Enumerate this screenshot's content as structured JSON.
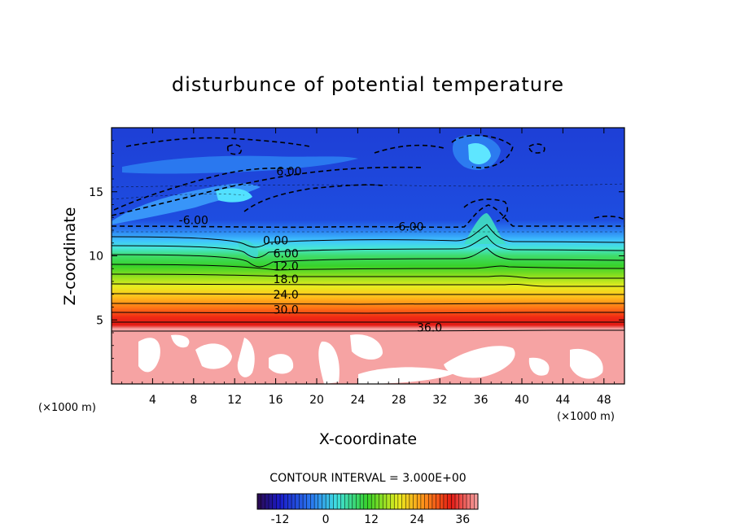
{
  "chart_data": {
    "type": "heatmap",
    "title": "disturbunce of potential temperature",
    "xlabel": "X-coordinate",
    "ylabel": "Z-coordinate",
    "x_unit_left": "(×1000 m)",
    "x_unit_right": "(×1000 m)",
    "xlim": [
      0,
      50
    ],
    "ylim": [
      0,
      20
    ],
    "x_ticks": [
      "4",
      "8",
      "12",
      "16",
      "20",
      "24",
      "28",
      "32",
      "36",
      "40",
      "44",
      "48"
    ],
    "y_ticks": [
      "5",
      "10",
      "15"
    ],
    "contour_interval_text": "CONTOUR INTERVAL = 3.000E+00",
    "contour_labels": [
      {
        "text": "6.00",
        "x": 17.3,
        "z": 16.6
      },
      {
        "text": "-6.00",
        "x": 8.0,
        "z": 12.8
      },
      {
        "text": "-6.00",
        "x": 29.0,
        "z": 12.3
      },
      {
        "text": "0.00",
        "x": 16.0,
        "z": 11.2
      },
      {
        "text": "6.00",
        "x": 17.0,
        "z": 10.2
      },
      {
        "text": "12.0",
        "x": 17.0,
        "z": 9.2
      },
      {
        "text": "18.0",
        "x": 17.0,
        "z": 8.2
      },
      {
        "text": "24.0",
        "x": 17.0,
        "z": 7.0
      },
      {
        "text": "30.0",
        "x": 17.0,
        "z": 5.8
      },
      {
        "text": "36.0",
        "x": 31.0,
        "z": 4.4
      }
    ],
    "colorbar": {
      "ticks": [
        "-12",
        "0",
        "12",
        "24",
        "36"
      ],
      "range": [
        -18,
        40
      ]
    },
    "colors": {
      "deep_blue": "#1c3ad8",
      "cyan": "#3fe0ff",
      "green": "#39d52b",
      "yellow": "#f7e51e",
      "orange": "#ff8c1a",
      "red": "#f21c12",
      "pink": "#f6a3a3"
    }
  }
}
